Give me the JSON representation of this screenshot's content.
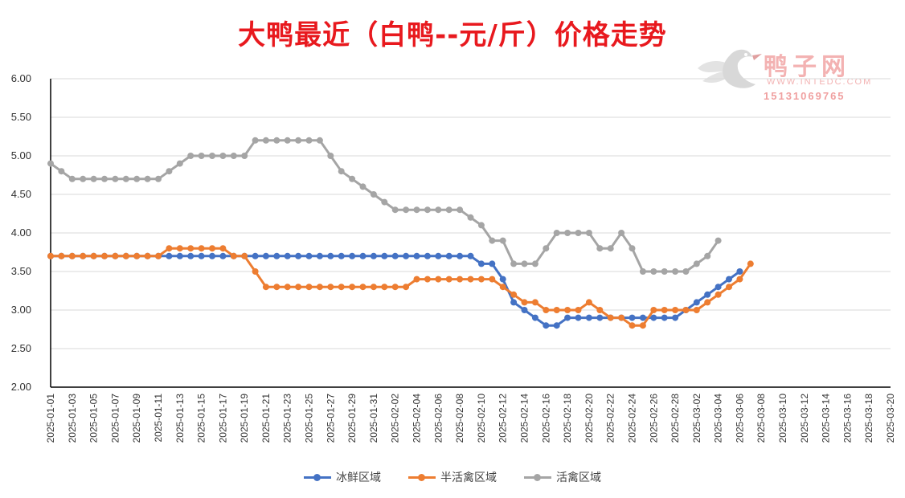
{
  "colors": {
    "title": "#e8191e",
    "series": [
      "#4472c4",
      "#ed7d31",
      "#a5a5a5"
    ],
    "grid": "#d9d9d9"
  },
  "watermark": {
    "name": "鸭子网",
    "site": "WWW.INTEDC.COM",
    "phone": "15131069765"
  },
  "chart_data": {
    "type": "line",
    "title": "大鸭最近（白鸭--元/斤）价格走势",
    "xlabel": "",
    "ylabel": "",
    "ylim": [
      2.0,
      6.0
    ],
    "yticks": [
      "2.00",
      "2.50",
      "3.00",
      "3.50",
      "4.00",
      "4.50",
      "5.00",
      "5.50",
      "6.00"
    ],
    "x_start": "2025-01-01",
    "x_end": "2025-03-20",
    "xtick_labels": [
      "2025-01-01",
      "2025-01-03",
      "2025-01-05",
      "2025-01-07",
      "2025-01-09",
      "2025-01-11",
      "2025-01-13",
      "2025-01-15",
      "2025-01-17",
      "2025-01-19",
      "2025-01-21",
      "2025-01-23",
      "2025-01-25",
      "2025-01-27",
      "2025-01-29",
      "2025-01-31",
      "2025-02-02",
      "2025-02-04",
      "2025-02-06",
      "2025-02-08",
      "2025-02-10",
      "2025-02-12",
      "2025-02-14",
      "2025-02-16",
      "2025-02-18",
      "2025-02-20",
      "2025-02-22",
      "2025-02-24",
      "2025-02-26",
      "2025-02-28",
      "2025-03-02",
      "2025-03-04",
      "2025-03-06",
      "2025-03-08",
      "2025-03-10",
      "2025-03-12",
      "2025-03-14",
      "2025-03-16",
      "2025-03-18",
      "2025-03-20"
    ],
    "grid": true,
    "legend_position": "bottom",
    "series": [
      {
        "name": "冰鲜区域",
        "values": [
          3.7,
          3.7,
          3.7,
          3.7,
          3.7,
          3.7,
          3.7,
          3.7,
          3.7,
          3.7,
          3.7,
          3.7,
          3.7,
          3.7,
          3.7,
          3.7,
          3.7,
          3.7,
          3.7,
          3.7,
          3.7,
          3.7,
          3.7,
          3.7,
          3.7,
          3.7,
          3.7,
          3.7,
          3.7,
          3.7,
          3.7,
          3.7,
          3.7,
          3.7,
          3.7,
          3.7,
          3.7,
          3.7,
          3.7,
          3.7,
          3.6,
          3.6,
          3.4,
          3.1,
          3.0,
          2.9,
          2.8,
          2.8,
          2.9,
          2.9,
          2.9,
          2.9,
          2.9,
          2.9,
          2.9,
          2.9,
          2.9,
          2.9,
          2.9,
          3.0,
          3.1,
          3.2,
          3.3,
          3.4,
          3.5
        ]
      },
      {
        "name": "半活禽区域",
        "values": [
          3.7,
          3.7,
          3.7,
          3.7,
          3.7,
          3.7,
          3.7,
          3.7,
          3.7,
          3.7,
          3.7,
          3.8,
          3.8,
          3.8,
          3.8,
          3.8,
          3.8,
          3.7,
          3.7,
          3.5,
          3.3,
          3.3,
          3.3,
          3.3,
          3.3,
          3.3,
          3.3,
          3.3,
          3.3,
          3.3,
          3.3,
          3.3,
          3.3,
          3.3,
          3.4,
          3.4,
          3.4,
          3.4,
          3.4,
          3.4,
          3.4,
          3.4,
          3.3,
          3.2,
          3.1,
          3.1,
          3.0,
          3.0,
          3.0,
          3.0,
          3.1,
          3.0,
          2.9,
          2.9,
          2.8,
          2.8,
          3.0,
          3.0,
          3.0,
          3.0,
          3.0,
          3.1,
          3.2,
          3.3,
          3.4,
          3.6
        ]
      },
      {
        "name": "活禽区域",
        "values": [
          4.9,
          4.8,
          4.7,
          4.7,
          4.7,
          4.7,
          4.7,
          4.7,
          4.7,
          4.7,
          4.7,
          4.8,
          4.9,
          5.0,
          5.0,
          5.0,
          5.0,
          5.0,
          5.0,
          5.2,
          5.2,
          5.2,
          5.2,
          5.2,
          5.2,
          5.2,
          5.0,
          4.8,
          4.7,
          4.6,
          4.5,
          4.4,
          4.3,
          4.3,
          4.3,
          4.3,
          4.3,
          4.3,
          4.3,
          4.2,
          4.1,
          3.9,
          3.9,
          3.6,
          3.6,
          3.6,
          3.8,
          4.0,
          4.0,
          4.0,
          4.0,
          3.8,
          3.8,
          4.0,
          3.8,
          3.5,
          3.5,
          3.5,
          3.5,
          3.5,
          3.6,
          3.7,
          3.9
        ]
      }
    ]
  }
}
